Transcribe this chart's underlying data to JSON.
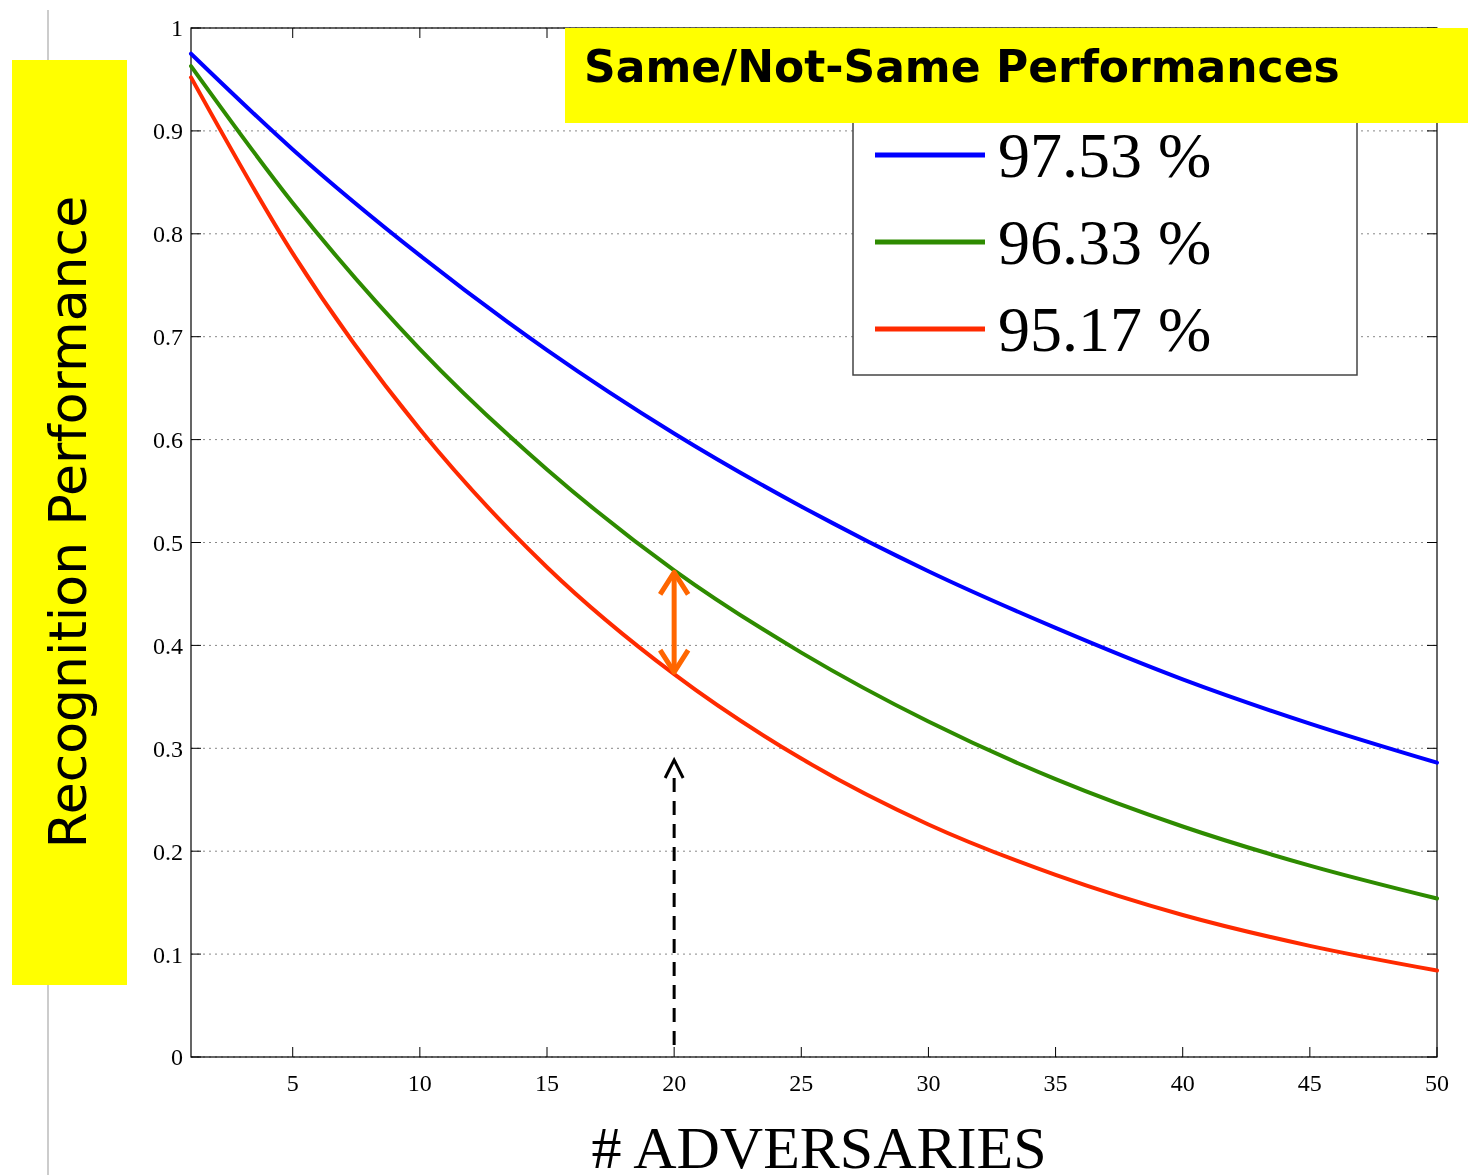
{
  "chart_data": {
    "type": "line",
    "title": "Same/Not-Same Performances",
    "xlabel": "# ADVERSARIES",
    "ylabel": "Recognition Performance",
    "x": [
      1,
      5,
      10,
      15,
      20,
      25,
      30,
      35,
      40,
      45,
      50
    ],
    "series": [
      {
        "name": "97.53 %",
        "color": "#0000ff",
        "values": [
          0.975,
          0.882,
          0.779,
          0.687,
          0.606,
          0.535,
          0.472,
          0.417,
          0.367,
          0.324,
          0.286
        ]
      },
      {
        "name": "96.33 %",
        "color": "#2e8b00",
        "values": [
          0.963,
          0.83,
          0.688,
          0.571,
          0.473,
          0.393,
          0.326,
          0.27,
          0.224,
          0.186,
          0.154
        ]
      },
      {
        "name": "95.17 %",
        "color": "#ff2a00",
        "values": [
          0.952,
          0.781,
          0.61,
          0.476,
          0.372,
          0.29,
          0.226,
          0.177,
          0.138,
          0.108,
          0.084
        ]
      }
    ],
    "xlim": [
      1,
      50
    ],
    "xticks": [
      5,
      10,
      15,
      20,
      25,
      30,
      35,
      40,
      45,
      50
    ],
    "ylim": [
      0,
      1
    ],
    "yticks": [
      0,
      0.1,
      0.2,
      0.3,
      0.4,
      0.5,
      0.6,
      0.7,
      0.8,
      0.9,
      1
    ],
    "grid": "y",
    "legend": "top right",
    "marker": "none",
    "line_style": "solid"
  }
}
